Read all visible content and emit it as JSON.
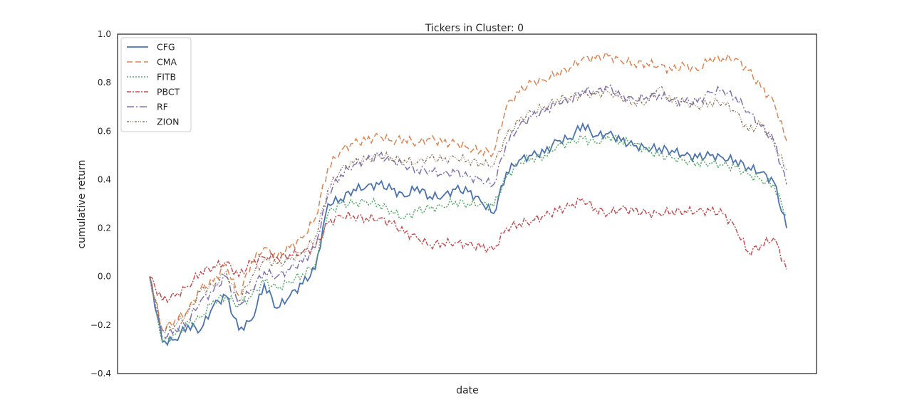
{
  "chart_data": {
    "type": "line",
    "title": "Tickers in Cluster: 0",
    "xlabel": "date",
    "ylabel": "cumulative return",
    "ylim": [
      -0.4,
      1.0
    ],
    "yticks": [
      "1.0",
      "0.8",
      "0.6",
      "0.4",
      "0.2",
      "0.0",
      "−0.2",
      "−0.4"
    ],
    "ytick_values": [
      1.0,
      0.8,
      0.6,
      0.4,
      0.2,
      0.0,
      -0.2,
      -0.4
    ],
    "x_ticks_shown": false,
    "grid": false,
    "legend_position": "top-left",
    "x": [
      0,
      0.02,
      0.04,
      0.06,
      0.08,
      0.1,
      0.12,
      0.14,
      0.16,
      0.18,
      0.2,
      0.22,
      0.24,
      0.26,
      0.28,
      0.3,
      0.32,
      0.34,
      0.36,
      0.38,
      0.4,
      0.42,
      0.44,
      0.46,
      0.48,
      0.5,
      0.52,
      0.54,
      0.56,
      0.58,
      0.6,
      0.62,
      0.64,
      0.66,
      0.68,
      0.7,
      0.72,
      0.74,
      0.76,
      0.78,
      0.8,
      0.82,
      0.84,
      0.86,
      0.88,
      0.9,
      0.92,
      0.94,
      0.96,
      0.98,
      1.0
    ],
    "series": [
      {
        "name": "CFG",
        "color": "#4c72b0",
        "dash": "solid",
        "values": [
          0.0,
          -0.27,
          -0.26,
          -0.2,
          -0.22,
          -0.12,
          -0.08,
          -0.22,
          -0.18,
          -0.03,
          -0.13,
          -0.08,
          -0.03,
          0.03,
          0.3,
          0.32,
          0.36,
          0.37,
          0.38,
          0.36,
          0.33,
          0.37,
          0.33,
          0.33,
          0.36,
          0.35,
          0.31,
          0.26,
          0.43,
          0.48,
          0.5,
          0.51,
          0.56,
          0.57,
          0.63,
          0.58,
          0.59,
          0.56,
          0.54,
          0.53,
          0.53,
          0.52,
          0.5,
          0.49,
          0.5,
          0.49,
          0.48,
          0.45,
          0.43,
          0.39,
          0.2
        ]
      },
      {
        "name": "CMA",
        "color": "#dd8452",
        "dash": "8,4",
        "values": [
          0.0,
          -0.22,
          -0.18,
          -0.14,
          -0.05,
          -0.02,
          0.05,
          -0.08,
          0.06,
          0.12,
          0.08,
          0.12,
          0.16,
          0.24,
          0.45,
          0.52,
          0.55,
          0.56,
          0.58,
          0.56,
          0.57,
          0.55,
          0.57,
          0.55,
          0.55,
          0.53,
          0.52,
          0.51,
          0.7,
          0.76,
          0.8,
          0.81,
          0.84,
          0.86,
          0.9,
          0.9,
          0.91,
          0.89,
          0.88,
          0.88,
          0.87,
          0.85,
          0.87,
          0.85,
          0.9,
          0.9,
          0.9,
          0.85,
          0.78,
          0.72,
          0.56
        ]
      },
      {
        "name": "FITB",
        "color": "#55a868",
        "dash": "2,2",
        "values": [
          0.0,
          -0.27,
          -0.24,
          -0.2,
          -0.17,
          -0.1,
          -0.08,
          -0.12,
          -0.08,
          -0.02,
          -0.05,
          -0.02,
          0.01,
          0.05,
          0.26,
          0.3,
          0.3,
          0.31,
          0.3,
          0.27,
          0.24,
          0.27,
          0.28,
          0.29,
          0.31,
          0.3,
          0.3,
          0.29,
          0.41,
          0.47,
          0.49,
          0.5,
          0.54,
          0.55,
          0.57,
          0.55,
          0.58,
          0.56,
          0.55,
          0.52,
          0.5,
          0.49,
          0.48,
          0.47,
          0.47,
          0.46,
          0.45,
          0.42,
          0.4,
          0.38,
          0.25
        ]
      },
      {
        "name": "PBCT",
        "color": "#c44e52",
        "dash": "6,2,2,2",
        "values": [
          0.0,
          -0.1,
          -0.08,
          -0.04,
          0.02,
          0.04,
          0.06,
          0.0,
          0.06,
          0.08,
          0.08,
          0.09,
          0.1,
          0.12,
          0.22,
          0.25,
          0.25,
          0.24,
          0.24,
          0.22,
          0.18,
          0.16,
          0.13,
          0.14,
          0.14,
          0.13,
          0.12,
          0.11,
          0.2,
          0.22,
          0.23,
          0.25,
          0.27,
          0.29,
          0.32,
          0.28,
          0.26,
          0.28,
          0.27,
          0.26,
          0.26,
          0.27,
          0.27,
          0.27,
          0.27,
          0.26,
          0.2,
          0.1,
          0.13,
          0.16,
          0.03
        ]
      },
      {
        "name": "RF",
        "color": "#8172b3",
        "dash": "10,3,2,3",
        "values": [
          0.0,
          -0.25,
          -0.22,
          -0.18,
          -0.1,
          -0.06,
          0.0,
          -0.12,
          -0.05,
          0.02,
          0.0,
          0.03,
          0.06,
          0.12,
          0.34,
          0.42,
          0.46,
          0.48,
          0.5,
          0.48,
          0.46,
          0.44,
          0.44,
          0.42,
          0.43,
          0.41,
          0.4,
          0.38,
          0.55,
          0.62,
          0.66,
          0.68,
          0.72,
          0.73,
          0.77,
          0.76,
          0.78,
          0.74,
          0.73,
          0.74,
          0.75,
          0.73,
          0.72,
          0.72,
          0.76,
          0.77,
          0.74,
          0.68,
          0.62,
          0.56,
          0.38
        ]
      },
      {
        "name": "ZION",
        "color": "#937860",
        "dash": "3,2,1,2,1,2",
        "values": [
          0.0,
          -0.22,
          -0.2,
          -0.15,
          -0.06,
          -0.04,
          0.02,
          -0.1,
          0.0,
          0.07,
          0.05,
          0.07,
          0.1,
          0.16,
          0.36,
          0.44,
          0.47,
          0.48,
          0.5,
          0.49,
          0.48,
          0.47,
          0.49,
          0.48,
          0.49,
          0.48,
          0.47,
          0.46,
          0.58,
          0.64,
          0.68,
          0.7,
          0.73,
          0.74,
          0.75,
          0.75,
          0.76,
          0.74,
          0.72,
          0.72,
          0.78,
          0.72,
          0.72,
          0.7,
          0.72,
          0.72,
          0.68,
          0.6,
          0.63,
          0.55,
          0.44
        ]
      }
    ]
  }
}
